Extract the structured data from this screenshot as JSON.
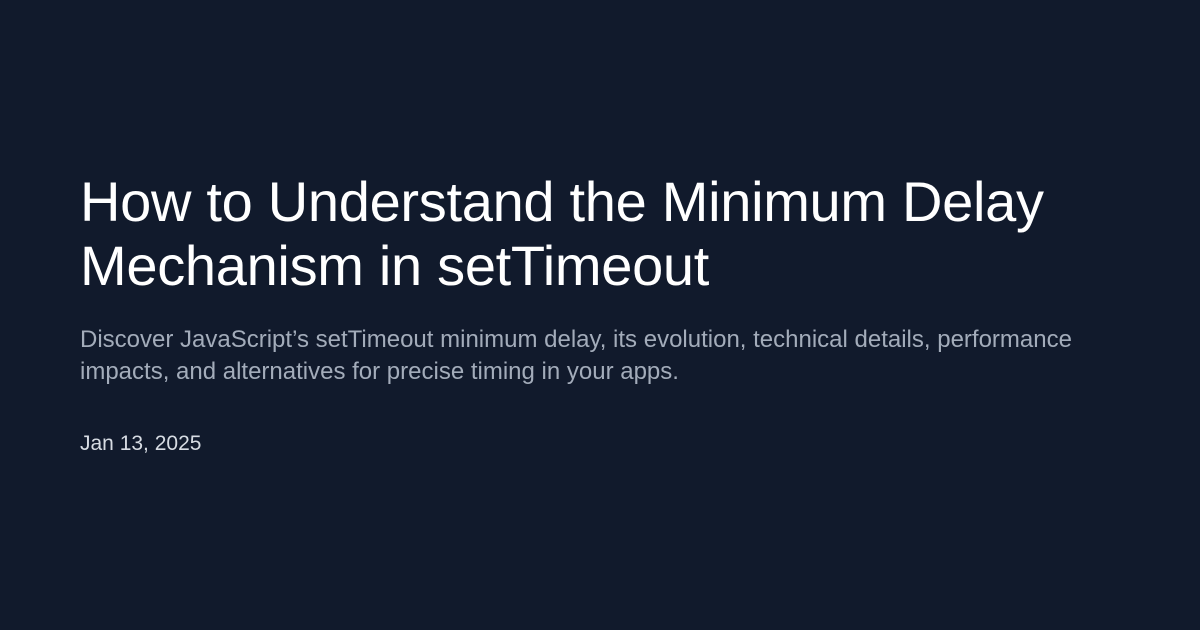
{
  "article": {
    "title": "How to Understand the Minimum Delay Mechanism in setTimeout",
    "description": "Discover JavaScript’s setTimeout minimum delay, its evolution, technical details, performance impacts, and alternatives for precise timing in your apps.",
    "date": "Jan 13, 2025"
  }
}
